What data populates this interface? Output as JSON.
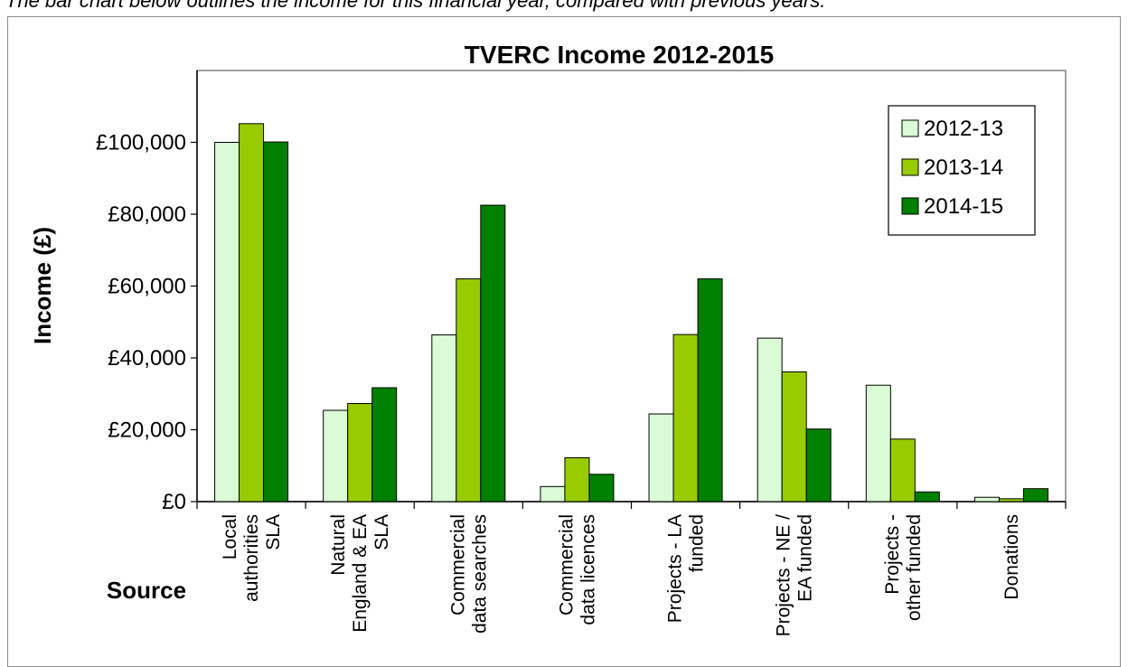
{
  "intro_text": "The bar chart below outlines the income for this financial year, compared with previous years.",
  "chart_data": {
    "type": "bar",
    "title": "TVERC Income 2012-2015",
    "xlabel": "Source",
    "ylabel": "Income (£)",
    "ylim": [
      0,
      120000
    ],
    "yticks": [
      "£0",
      "£20,000",
      "£40,000",
      "£60,000",
      "£80,000",
      "£100,000"
    ],
    "ytick_values": [
      0,
      20000,
      40000,
      60000,
      80000,
      100000
    ],
    "categories": [
      [
        "Local",
        "authorities",
        "SLA"
      ],
      [
        "Natural",
        "England & EA",
        "SLA"
      ],
      [
        "Commercial",
        "data searches"
      ],
      [
        "Commercial",
        "data licences"
      ],
      [
        "Projects - LA",
        "funded"
      ],
      [
        "Projects - NE /",
        "EA funded"
      ],
      [
        "Projects -",
        "other funded"
      ],
      [
        "Donations"
      ]
    ],
    "series": [
      {
        "name": "2012-13",
        "color": "#d9fbd5",
        "values": [
          100000,
          25400,
          46400,
          4200,
          24400,
          45500,
          32400,
          1200
        ]
      },
      {
        "name": "2013-14",
        "color": "#99cc00",
        "values": [
          105200,
          27300,
          62000,
          12200,
          46500,
          36100,
          17400,
          800
        ]
      },
      {
        "name": "2014-15",
        "color": "#008000",
        "values": [
          100100,
          31700,
          82500,
          7600,
          62000,
          20200,
          2700,
          3600
        ]
      }
    ],
    "legend_position": "top-right",
    "grid": false
  }
}
